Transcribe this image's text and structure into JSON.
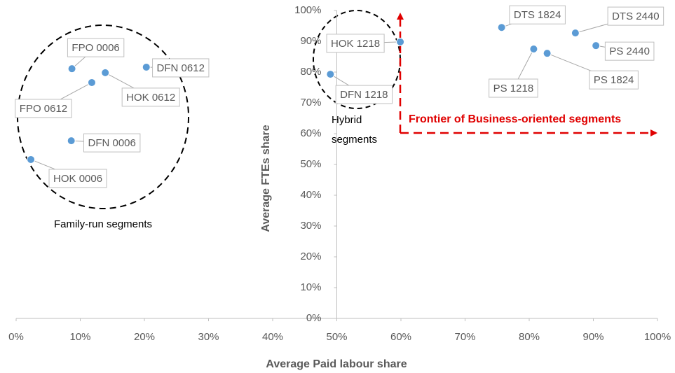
{
  "chart_data": {
    "type": "scatter",
    "x_label": "Average Paid labour share",
    "y_label": "Average FTEs share",
    "labels": [
      "FPO 0006",
      "HOK 0612",
      "DFN 0612",
      "FPO 0612",
      "DFN 0006",
      "HOK 0006",
      "HOK 1218",
      "DFN 1218",
      "DTS 1824",
      "DTS 2440",
      "PS 1218",
      "PS 1824",
      "PS 2440"
    ],
    "x": [
      8.7,
      13.9,
      20.3,
      11.8,
      8.6,
      2.3,
      59.9,
      49.0,
      75.7,
      87.2,
      80.7,
      82.8,
      90.4
    ],
    "values": [
      81.1,
      79.8,
      81.6,
      76.6,
      57.7,
      51.6,
      89.8,
      79.3,
      94.5,
      92.7,
      87.5,
      86.1,
      88.6
    ],
    "color": "#5b9bd5",
    "xlim": [
      0,
      100
    ],
    "ylim": [
      0,
      100
    ],
    "xticks": [
      {
        "value": 0,
        "label": "0%"
      },
      {
        "value": 10,
        "label": "10%"
      },
      {
        "value": 20,
        "label": "20%"
      },
      {
        "value": 30,
        "label": "30%"
      },
      {
        "value": 40,
        "label": "40%"
      },
      {
        "value": 50,
        "label": "50%"
      },
      {
        "value": 60,
        "label": "60%"
      },
      {
        "value": 70,
        "label": "70%"
      },
      {
        "value": 80,
        "label": "80%"
      },
      {
        "value": 90,
        "label": "90%"
      },
      {
        "value": 100,
        "label": "100%"
      }
    ],
    "yticks": [
      {
        "value": 0,
        "label": "0%"
      },
      {
        "value": 10,
        "label": "10%"
      },
      {
        "value": 20,
        "label": "20%"
      },
      {
        "value": 30,
        "label": "30%"
      },
      {
        "value": 40,
        "label": "40%"
      },
      {
        "value": 50,
        "label": "50%"
      },
      {
        "value": 60,
        "label": "60%"
      },
      {
        "value": 70,
        "label": "70%"
      },
      {
        "value": 80,
        "label": "80%"
      },
      {
        "value": 90,
        "label": "90%"
      },
      {
        "value": 100,
        "label": "100%"
      }
    ],
    "y_axis_at": 50,
    "grid": false,
    "annotations": {
      "family": "Family-run segments",
      "hybrid": [
        "Hybrid",
        "segments"
      ],
      "frontier": "Frontier of Business-oriented segments"
    }
  }
}
